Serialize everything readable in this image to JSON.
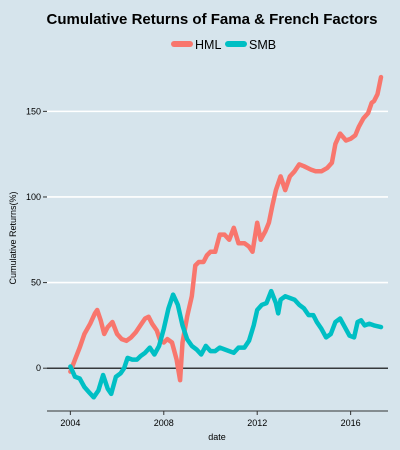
{
  "colors": {
    "background": "#d6e4ec",
    "gridline": "#ffffff",
    "hml": "#f8766d",
    "smb": "#00bfc4",
    "zero_line": "#000000"
  },
  "chart_data": {
    "type": "line",
    "title": "Cumulative Returns of Fama & French Factors",
    "xlabel": "date",
    "ylabel": "Cumulative Returns(%)",
    "xlim": [
      2003.0,
      2017.6
    ],
    "ylim": [
      -25,
      180
    ],
    "x_ticks": [
      2004,
      2008,
      2012,
      2016
    ],
    "x_tick_labels": [
      "2004",
      "2008",
      "2012",
      "2016"
    ],
    "y_ticks": [
      0,
      50,
      100,
      150
    ],
    "y_tick_labels": [
      "0",
      "50",
      "100",
      "150"
    ],
    "grid": true,
    "zero_line": true,
    "legend": {
      "position": "top",
      "entries": [
        "HML",
        "SMB"
      ]
    },
    "series": [
      {
        "name": "HML",
        "color": "#f8766d",
        "points": [
          [
            2004.0,
            -2
          ],
          [
            2004.2,
            5
          ],
          [
            2004.4,
            12
          ],
          [
            2004.6,
            20
          ],
          [
            2004.85,
            26
          ],
          [
            2005.05,
            32
          ],
          [
            2005.15,
            34
          ],
          [
            2005.3,
            28
          ],
          [
            2005.45,
            20
          ],
          [
            2005.6,
            24
          ],
          [
            2005.8,
            27
          ],
          [
            2006.0,
            20
          ],
          [
            2006.2,
            17
          ],
          [
            2006.4,
            16
          ],
          [
            2006.6,
            18
          ],
          [
            2006.8,
            21
          ],
          [
            2007.0,
            25
          ],
          [
            2007.2,
            29
          ],
          [
            2007.35,
            30
          ],
          [
            2007.5,
            26
          ],
          [
            2007.7,
            22
          ],
          [
            2007.85,
            16
          ],
          [
            2008.0,
            15
          ],
          [
            2008.15,
            17
          ],
          [
            2008.35,
            15
          ],
          [
            2008.55,
            5
          ],
          [
            2008.7,
            -7
          ],
          [
            2008.8,
            15
          ],
          [
            2009.0,
            30
          ],
          [
            2009.2,
            42
          ],
          [
            2009.35,
            60
          ],
          [
            2009.5,
            62
          ],
          [
            2009.7,
            62
          ],
          [
            2009.85,
            66
          ],
          [
            2010.0,
            68
          ],
          [
            2010.2,
            68
          ],
          [
            2010.4,
            78
          ],
          [
            2010.6,
            78
          ],
          [
            2010.8,
            75
          ],
          [
            2011.0,
            82
          ],
          [
            2011.2,
            73
          ],
          [
            2011.45,
            73
          ],
          [
            2011.65,
            71
          ],
          [
            2011.8,
            68
          ],
          [
            2012.0,
            85
          ],
          [
            2012.15,
            75
          ],
          [
            2012.35,
            80
          ],
          [
            2012.5,
            85
          ],
          [
            2012.65,
            95
          ],
          [
            2012.8,
            104
          ],
          [
            2013.0,
            112
          ],
          [
            2013.2,
            104
          ],
          [
            2013.4,
            112
          ],
          [
            2013.6,
            115
          ],
          [
            2013.8,
            119
          ],
          [
            2014.0,
            118
          ],
          [
            2014.3,
            116
          ],
          [
            2014.5,
            115
          ],
          [
            2014.75,
            115
          ],
          [
            2015.0,
            117
          ],
          [
            2015.2,
            120
          ],
          [
            2015.35,
            131
          ],
          [
            2015.55,
            137
          ],
          [
            2015.8,
            133
          ],
          [
            2016.0,
            134
          ],
          [
            2016.2,
            136
          ],
          [
            2016.35,
            141
          ],
          [
            2016.55,
            146
          ],
          [
            2016.75,
            149
          ],
          [
            2016.9,
            155
          ],
          [
            2017.0,
            156
          ],
          [
            2017.15,
            160
          ],
          [
            2017.3,
            170
          ]
        ]
      },
      {
        "name": "SMB",
        "color": "#00bfc4",
        "points": [
          [
            2004.0,
            1
          ],
          [
            2004.2,
            -5
          ],
          [
            2004.4,
            -6
          ],
          [
            2004.6,
            -11
          ],
          [
            2004.8,
            -14
          ],
          [
            2005.0,
            -17
          ],
          [
            2005.2,
            -13
          ],
          [
            2005.4,
            -4
          ],
          [
            2005.6,
            -12
          ],
          [
            2005.75,
            -15
          ],
          [
            2005.95,
            -5
          ],
          [
            2006.15,
            -3
          ],
          [
            2006.3,
            0
          ],
          [
            2006.45,
            6
          ],
          [
            2006.65,
            5
          ],
          [
            2006.85,
            5
          ],
          [
            2007.0,
            7
          ],
          [
            2007.2,
            9
          ],
          [
            2007.4,
            12
          ],
          [
            2007.6,
            8
          ],
          [
            2007.8,
            13
          ],
          [
            2008.0,
            23
          ],
          [
            2008.2,
            35
          ],
          [
            2008.4,
            43
          ],
          [
            2008.6,
            37
          ],
          [
            2008.8,
            25
          ],
          [
            2009.0,
            17
          ],
          [
            2009.2,
            13
          ],
          [
            2009.4,
            11
          ],
          [
            2009.6,
            8
          ],
          [
            2009.8,
            13
          ],
          [
            2010.0,
            10
          ],
          [
            2010.2,
            10
          ],
          [
            2010.4,
            12
          ],
          [
            2010.6,
            11
          ],
          [
            2010.8,
            10
          ],
          [
            2011.0,
            9
          ],
          [
            2011.2,
            12
          ],
          [
            2011.45,
            12
          ],
          [
            2011.65,
            16
          ],
          [
            2011.85,
            25
          ],
          [
            2012.0,
            34
          ],
          [
            2012.2,
            37
          ],
          [
            2012.4,
            38
          ],
          [
            2012.6,
            45
          ],
          [
            2012.8,
            38
          ],
          [
            2012.9,
            32
          ],
          [
            2013.0,
            40
          ],
          [
            2013.2,
            42
          ],
          [
            2013.4,
            41
          ],
          [
            2013.6,
            40
          ],
          [
            2013.8,
            37
          ],
          [
            2014.0,
            35
          ],
          [
            2014.2,
            31
          ],
          [
            2014.4,
            31
          ],
          [
            2014.55,
            27
          ],
          [
            2014.75,
            23
          ],
          [
            2014.95,
            18
          ],
          [
            2015.15,
            20
          ],
          [
            2015.35,
            27
          ],
          [
            2015.55,
            29
          ],
          [
            2015.75,
            24
          ],
          [
            2015.95,
            19
          ],
          [
            2016.15,
            18
          ],
          [
            2016.3,
            27
          ],
          [
            2016.45,
            28
          ],
          [
            2016.6,
            25
          ],
          [
            2016.8,
            26
          ],
          [
            2017.0,
            25
          ],
          [
            2017.3,
            24
          ]
        ]
      }
    ]
  }
}
